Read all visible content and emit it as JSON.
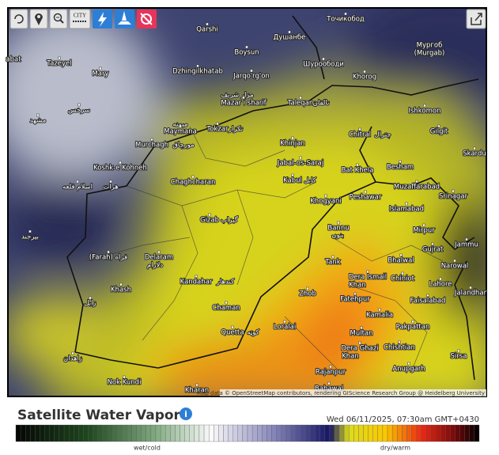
{
  "toolbar": {
    "city_button": "CITY"
  },
  "map": {
    "labels": [
      "Qarshi",
      "Душанбе",
      "Точикобод",
      "Boysun",
      "Мургоб",
      "(Murgab)",
      "abat",
      "Tazeyel",
      "Mary",
      "Dzhingilkhatab",
      "Jarqo'rg'on",
      "Шуроободи",
      "Khorog",
      "مزار شریف",
      "Mazar i sharif",
      "Taleqan",
      "تالقان",
      "Ishkomon",
      "سرخس",
      "مشهد",
      "میمنه",
      "Maymana",
      "Tokzar",
      "تکزار",
      "Chitral",
      "چترال",
      "Gilgit",
      "Murchagh",
      "مورچاق",
      "Khinjan",
      "Skardu",
      "Koshk-e Kohneh",
      "Jabal-os-Saraj",
      "Bat Khela",
      "Besham",
      "Chaghcharan",
      "Kabul",
      "کابل",
      "Muzaffarabad",
      "اسلام قلعه",
      "هرات",
      "Srinagar",
      "Peshawar",
      "Khogyani",
      "Islamabad",
      "Gizab",
      "گیزاب",
      "Bannu",
      "بنوں",
      "Mirpur",
      "بیرجند",
      "Jammu",
      "Gujrat",
      "(Farah) فراه",
      "Delaram",
      "دلارام",
      "Tank",
      "Bhalwal",
      "Narowal",
      "Dera Ismail",
      "Khan",
      "Chiniot",
      "Kandahar",
      "کندهار",
      "Lahore",
      "Khash",
      "Zhob",
      "Jalandhar",
      "Fatehpur",
      "Faisalabad",
      "زابل",
      "Chaman",
      "Kamalia",
      "Quetta",
      "کوټه",
      "Loralai",
      "Multan",
      "Pakpattan",
      "Dera Ghazi",
      "Khan",
      "Chishtian",
      "Sirsa",
      "زاهدان",
      "Anupgarh",
      "Rajanpur",
      "Nok Kundi",
      "Kharan",
      "Bahawal"
    ],
    "attribution": "Map data © OpenStreetMap contributors, rendering GIScience Research Group @ Heidelberg University"
  },
  "legend": {
    "title": "Satellite Water Vapor",
    "timestamp": "Wed 06/11/2025, 07:30am GMT+0430",
    "left_label": "wet/cold",
    "right_label": "dry/warm"
  }
}
